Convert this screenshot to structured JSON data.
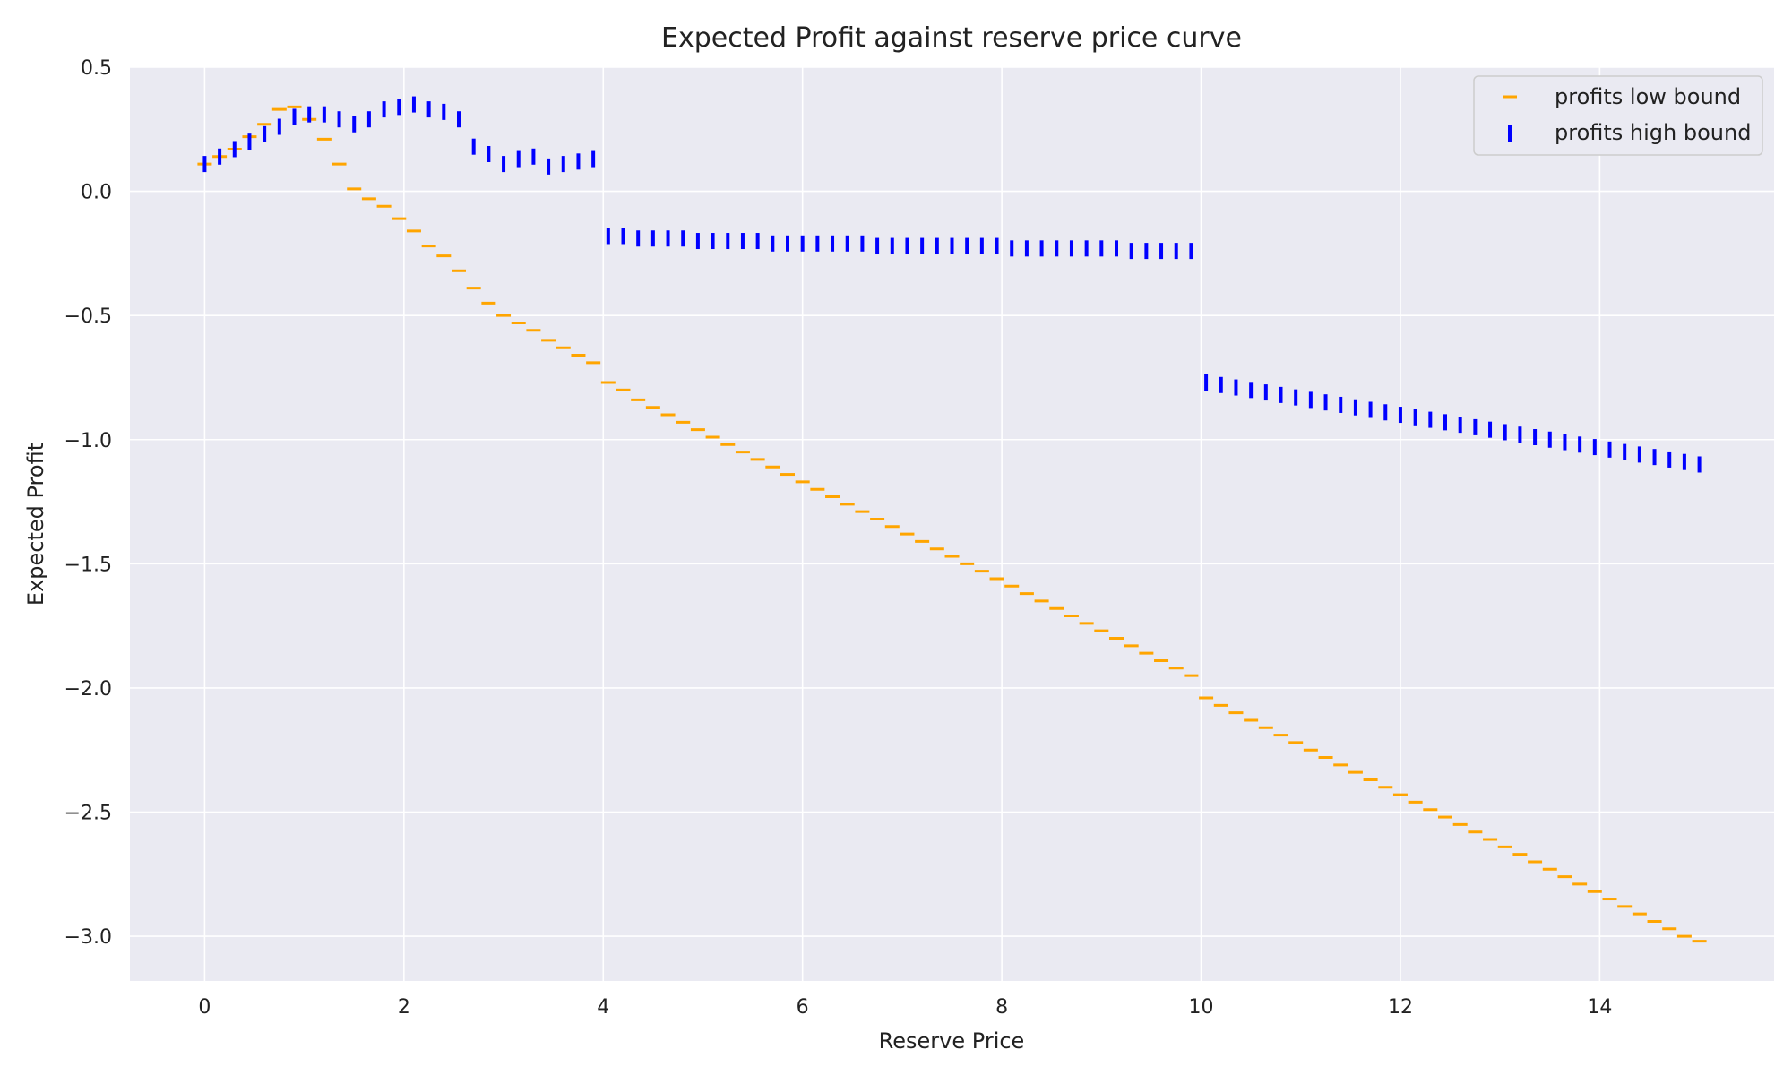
{
  "chart_data": {
    "type": "scatter",
    "title": "Expected Profit against reserve price curve",
    "xlabel": "Reserve Price",
    "ylabel": "Expected Profit",
    "xlim": [
      -0.75,
      15.75
    ],
    "ylim": [
      -3.18,
      0.5
    ],
    "xticks": [
      0,
      2,
      4,
      6,
      8,
      10,
      12,
      14
    ],
    "xtick_labels": [
      "0",
      "2",
      "4",
      "6",
      "8",
      "10",
      "12",
      "14"
    ],
    "yticks": [
      0.5,
      0.0,
      -0.5,
      -1.0,
      -1.5,
      -2.0,
      -2.5,
      -3.0
    ],
    "ytick_labels": [
      "0.5",
      "0.0",
      "−0.5",
      "−1.0",
      "−1.5",
      "−2.0",
      "−2.5",
      "−3.0"
    ],
    "grid": true,
    "legend_position": "top-right",
    "colors": {
      "background": "#eaeaf2",
      "grid": "#ffffff",
      "low": "#ffa500",
      "high": "#0000ff"
    },
    "series": [
      {
        "name": "profits low bound",
        "marker": "hline",
        "color": "#ffa500",
        "x": [
          0,
          0.15,
          0.3,
          0.45,
          0.6,
          0.75,
          0.9,
          1.05,
          1.2,
          1.35,
          1.5,
          1.65,
          1.8,
          1.95,
          2.1,
          2.25,
          2.4,
          2.55,
          2.7,
          2.85,
          3.0,
          3.15,
          3.3,
          3.45,
          3.6,
          3.75,
          3.9,
          4.05,
          4.2,
          4.35,
          4.5,
          4.65,
          4.8,
          4.95,
          5.1,
          5.25,
          5.4,
          5.55,
          5.7,
          5.85,
          6.0,
          6.15,
          6.3,
          6.45,
          6.6,
          6.75,
          6.9,
          7.05,
          7.2,
          7.35,
          7.5,
          7.65,
          7.8,
          7.95,
          8.1,
          8.25,
          8.4,
          8.55,
          8.7,
          8.85,
          9.0,
          9.15,
          9.3,
          9.45,
          9.6,
          9.75,
          9.9,
          10.05,
          10.2,
          10.35,
          10.5,
          10.65,
          10.8,
          10.95,
          11.1,
          11.25,
          11.4,
          11.55,
          11.7,
          11.85,
          12.0,
          12.15,
          12.3,
          12.45,
          12.6,
          12.75,
          12.9,
          13.05,
          13.2,
          13.35,
          13.5,
          13.65,
          13.8,
          13.95,
          14.1,
          14.25,
          14.4,
          14.55,
          14.7,
          14.85,
          15.0
        ],
        "y": [
          0.11,
          0.14,
          0.17,
          0.22,
          0.27,
          0.33,
          0.34,
          0.29,
          0.21,
          0.11,
          0.01,
          -0.03,
          -0.06,
          -0.11,
          -0.16,
          -0.22,
          -0.26,
          -0.32,
          -0.39,
          -0.45,
          -0.5,
          -0.53,
          -0.56,
          -0.6,
          -0.63,
          -0.66,
          -0.69,
          -0.77,
          -0.8,
          -0.84,
          -0.87,
          -0.9,
          -0.93,
          -0.96,
          -0.99,
          -1.02,
          -1.05,
          -1.08,
          -1.11,
          -1.14,
          -1.17,
          -1.2,
          -1.23,
          -1.26,
          -1.29,
          -1.32,
          -1.35,
          -1.38,
          -1.41,
          -1.44,
          -1.47,
          -1.5,
          -1.53,
          -1.56,
          -1.59,
          -1.62,
          -1.65,
          -1.68,
          -1.71,
          -1.74,
          -1.77,
          -1.8,
          -1.83,
          -1.86,
          -1.89,
          -1.92,
          -1.95,
          -2.04,
          -2.07,
          -2.1,
          -2.13,
          -2.16,
          -2.19,
          -2.22,
          -2.25,
          -2.28,
          -2.31,
          -2.34,
          -2.37,
          -2.4,
          -2.43,
          -2.46,
          -2.49,
          -2.52,
          -2.55,
          -2.58,
          -2.61,
          -2.64,
          -2.67,
          -2.7,
          -2.73,
          -2.76,
          -2.79,
          -2.82,
          -2.85,
          -2.88,
          -2.91,
          -2.94,
          -2.97,
          -3.0,
          -3.02
        ]
      },
      {
        "name": "profits high bound",
        "marker": "vline",
        "color": "#0000ff",
        "x": [
          0,
          0.15,
          0.3,
          0.45,
          0.6,
          0.75,
          0.9,
          1.05,
          1.2,
          1.35,
          1.5,
          1.65,
          1.8,
          1.95,
          2.1,
          2.25,
          2.4,
          2.55,
          2.7,
          2.85,
          3.0,
          3.15,
          3.3,
          3.45,
          3.6,
          3.75,
          3.9,
          4.05,
          4.2,
          4.35,
          4.5,
          4.65,
          4.8,
          4.95,
          5.1,
          5.25,
          5.4,
          5.55,
          5.7,
          5.85,
          6.0,
          6.15,
          6.3,
          6.45,
          6.6,
          6.75,
          6.9,
          7.05,
          7.2,
          7.35,
          7.5,
          7.65,
          7.8,
          7.95,
          8.1,
          8.25,
          8.4,
          8.55,
          8.7,
          8.85,
          9.0,
          9.15,
          9.3,
          9.45,
          9.6,
          9.75,
          9.9,
          10.05,
          10.2,
          10.35,
          10.5,
          10.65,
          10.8,
          10.95,
          11.1,
          11.25,
          11.4,
          11.55,
          11.7,
          11.85,
          12.0,
          12.15,
          12.3,
          12.45,
          12.6,
          12.75,
          12.9,
          13.05,
          13.2,
          13.35,
          13.5,
          13.65,
          13.8,
          13.95,
          14.1,
          14.25,
          14.4,
          14.55,
          14.7,
          14.85,
          15.0
        ],
        "y": [
          0.11,
          0.14,
          0.17,
          0.2,
          0.23,
          0.26,
          0.3,
          0.31,
          0.31,
          0.29,
          0.27,
          0.29,
          0.33,
          0.34,
          0.35,
          0.33,
          0.32,
          0.29,
          0.18,
          0.15,
          0.11,
          0.13,
          0.14,
          0.1,
          0.11,
          0.12,
          0.13,
          -0.18,
          -0.18,
          -0.19,
          -0.19,
          -0.19,
          -0.19,
          -0.2,
          -0.2,
          -0.2,
          -0.2,
          -0.2,
          -0.21,
          -0.21,
          -0.21,
          -0.21,
          -0.21,
          -0.21,
          -0.21,
          -0.22,
          -0.22,
          -0.22,
          -0.22,
          -0.22,
          -0.22,
          -0.22,
          -0.22,
          -0.22,
          -0.23,
          -0.23,
          -0.23,
          -0.23,
          -0.23,
          -0.23,
          -0.23,
          -0.23,
          -0.24,
          -0.24,
          -0.24,
          -0.24,
          -0.24,
          -0.77,
          -0.78,
          -0.79,
          -0.8,
          -0.81,
          -0.82,
          -0.83,
          -0.84,
          -0.85,
          -0.86,
          -0.87,
          -0.88,
          -0.89,
          -0.9,
          -0.91,
          -0.92,
          -0.93,
          -0.94,
          -0.95,
          -0.96,
          -0.97,
          -0.98,
          -0.99,
          -1.0,
          -1.01,
          -1.02,
          -1.03,
          -1.04,
          -1.05,
          -1.06,
          -1.07,
          -1.08,
          -1.09,
          -1.1
        ]
      }
    ]
  }
}
